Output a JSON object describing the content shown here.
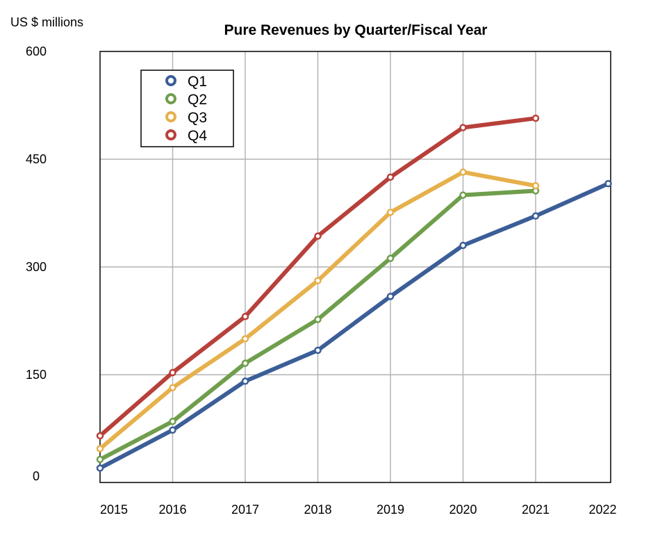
{
  "chart_data": {
    "type": "line",
    "title": "Pure Revenues by Quarter/Fiscal Year",
    "ylabel": "US $ millions",
    "xlabel": "",
    "categories": [
      "2015",
      "2016",
      "2017",
      "2018",
      "2019",
      "2020",
      "2021",
      "2022"
    ],
    "ylim": [
      0,
      600
    ],
    "yticks": [
      0,
      150,
      300,
      450,
      600
    ],
    "grid": true,
    "legend_position": "top-left",
    "series": [
      {
        "name": "Q1",
        "color": "#3b5e98",
        "values": [
          20,
          73,
          141,
          184,
          259,
          330,
          371,
          416
        ]
      },
      {
        "name": "Q2",
        "color": "#6f9e4c",
        "values": [
          32,
          85,
          166,
          227,
          312,
          400,
          406,
          null
        ]
      },
      {
        "name": "Q3",
        "color": "#e6b04b",
        "values": [
          47,
          132,
          200,
          281,
          376,
          432,
          413,
          null
        ]
      },
      {
        "name": "Q4",
        "color": "#b8403a",
        "values": [
          65,
          153,
          231,
          343,
          425,
          494,
          507,
          null
        ]
      }
    ]
  }
}
